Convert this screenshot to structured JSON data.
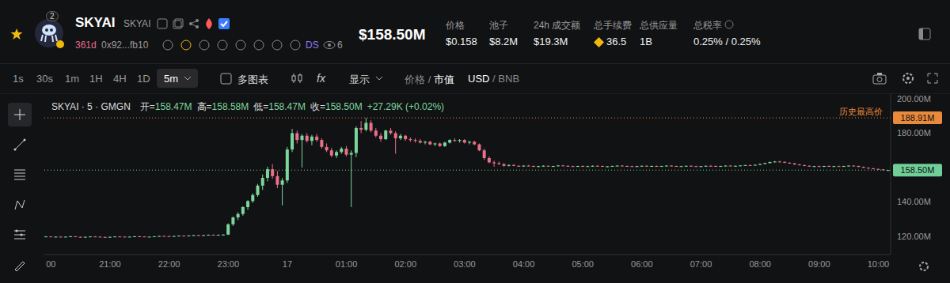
{
  "header": {
    "name": "SKYAI",
    "ticker": "SKYAI",
    "badge": "2",
    "age": "361d",
    "address": "0x92...fb10",
    "ds": "DS",
    "views": "6",
    "market_cap": "$158.50M",
    "stats": [
      {
        "label": "价格",
        "value": "$0.158"
      },
      {
        "label": "池子",
        "value": "$8.2M"
      },
      {
        "label": "24h 成交额",
        "value": "$19.3M"
      },
      {
        "label": "总手续费",
        "value": "36.5"
      },
      {
        "label": "总供应量",
        "value": "1B"
      },
      {
        "label": "总税率",
        "value": "0.25% / 0.25%"
      }
    ]
  },
  "toolbar": {
    "intervals": [
      "1s",
      "30s",
      "1m",
      "1H",
      "4H",
      "1D"
    ],
    "selected": "5m",
    "multi": "多图表",
    "fx": "fx",
    "display": "显示",
    "separator": "/",
    "price_mcap": [
      "价格",
      "市值"
    ],
    "currency": [
      "USD",
      "BNB"
    ]
  },
  "chart_data": {
    "type": "candlestick",
    "title": "SKYAI · 5 · GMGN",
    "info": {
      "items": [
        {
          "label": "开=",
          "value": "158.47M"
        },
        {
          "label": "高=",
          "value": "158.58M"
        },
        {
          "label": "低=",
          "value": "158.47M"
        },
        {
          "label": "收=",
          "value": "158.50M"
        }
      ],
      "change": "+27.29K (+0.02%)"
    },
    "categories": [
      null,
      "00",
      null,
      null,
      null,
      null,
      null,
      null,
      null,
      null,
      null,
      null,
      null,
      "21:00",
      null,
      null,
      null,
      null,
      null,
      null,
      null,
      null,
      null,
      null,
      null,
      "22:00",
      null,
      null,
      null,
      null,
      null,
      null,
      null,
      null,
      null,
      null,
      null,
      "23:00",
      null,
      null,
      null,
      null,
      null,
      null,
      null,
      null,
      null,
      null,
      null,
      "17",
      null,
      null,
      null,
      null,
      null,
      null,
      null,
      null,
      null,
      null,
      null,
      "01:00",
      null,
      null,
      null,
      null,
      null,
      null,
      null,
      null,
      null,
      null,
      null,
      "02:00",
      null,
      null,
      null,
      null,
      null,
      null,
      null,
      null,
      null,
      null,
      null,
      "03:00",
      null,
      null,
      null,
      null,
      null,
      null,
      null,
      null,
      null,
      null,
      null,
      "04:00",
      null,
      null,
      null,
      null,
      null,
      null,
      null,
      null,
      null,
      null,
      null,
      "05:00",
      null,
      null,
      null,
      null,
      null,
      null,
      null,
      null,
      null,
      null,
      null,
      "06:00",
      null,
      null,
      null,
      null,
      null,
      null,
      null,
      null,
      null,
      null,
      null,
      "07:00",
      null,
      null,
      null,
      null,
      null,
      null,
      null,
      null,
      null,
      null,
      null,
      "08:00",
      null,
      null,
      null,
      null,
      null,
      null,
      null,
      null,
      null,
      null,
      null,
      "09:00",
      null,
      null,
      null,
      null,
      null,
      null,
      null,
      null,
      null,
      null,
      null,
      "10:00",
      null,
      null
    ],
    "open": [
      119.8,
      119.9,
      119.6,
      119.8,
      119.7,
      119.8,
      120.0,
      119.7,
      119.6,
      119.7,
      119.9,
      119.8,
      119.6,
      119.5,
      119.7,
      119.9,
      119.8,
      119.7,
      119.8,
      120.0,
      119.9,
      119.7,
      119.8,
      120.0,
      120.2,
      120.1,
      120.0,
      120.2,
      120.4,
      120.3,
      120.5,
      120.7,
      120.6,
      120.7,
      120.9,
      120.8,
      120.9,
      121.0,
      127.0,
      131.0,
      133.0,
      137.0,
      140.5,
      144.0,
      149.5,
      154.0,
      159.0,
      155.0,
      150.0,
      152.5,
      170.5,
      180.0,
      176.0,
      178.5,
      175.5,
      178.0,
      176.0,
      172.0,
      170.0,
      167.0,
      169.0,
      171.0,
      167.5,
      168.5,
      183.0,
      182.0,
      186.0,
      181.5,
      178.5,
      176.5,
      181.5,
      180.0,
      177.0,
      178.5,
      176.5,
      176.0,
      175.5,
      174.5,
      175.0,
      173.5,
      174.0,
      172.5,
      174.5,
      176.0,
      175.5,
      176.0,
      174.5,
      175.0,
      173.5,
      170.0,
      165.5,
      163.0,
      162.5,
      162.0,
      161.0,
      161.5,
      161.0,
      160.8,
      161.1,
      160.9,
      160.6,
      160.8,
      161.0,
      160.7,
      160.9,
      161.2,
      161.0,
      160.8,
      160.6,
      160.9,
      160.7,
      160.8,
      161.0,
      160.9,
      160.6,
      160.7,
      160.9,
      161.1,
      160.9,
      160.8,
      160.6,
      160.8,
      161.0,
      160.8,
      160.9,
      160.7,
      160.9,
      161.1,
      160.9,
      160.7,
      160.8,
      161.0,
      160.8,
      160.6,
      160.8,
      161.0,
      160.9,
      160.7,
      160.9,
      161.1,
      160.9,
      161.0,
      161.2,
      161.4,
      161.3,
      161.6,
      162.1,
      162.6,
      163.2,
      163.5,
      163.3,
      162.8,
      162.4,
      161.8,
      161.4,
      161.0,
      160.7,
      160.8,
      160.6,
      160.9,
      160.7,
      160.8,
      160.6,
      160.9,
      161.1,
      160.9,
      160.4,
      159.9,
      159.5,
      159.2,
      158.9,
      158.47
    ],
    "high": [
      120.1,
      120.0,
      119.9,
      120.0,
      119.9,
      120.2,
      120.1,
      119.9,
      119.8,
      120.0,
      120.1,
      119.9,
      119.8,
      119.8,
      120.0,
      120.1,
      120.0,
      119.9,
      120.1,
      120.2,
      120.0,
      119.9,
      120.1,
      120.3,
      120.4,
      120.3,
      120.2,
      120.5,
      120.6,
      120.5,
      120.8,
      120.9,
      120.8,
      121.0,
      121.1,
      121.0,
      121.2,
      127.5,
      131.5,
      134.0,
      137.5,
      141.0,
      145.0,
      150.5,
      156.0,
      160.5,
      162.0,
      158.0,
      154.0,
      172.0,
      182.5,
      181.5,
      179.5,
      180.0,
      179.0,
      179.5,
      177.0,
      174.0,
      171.5,
      170.0,
      172.0,
      172.5,
      170.0,
      184.0,
      187.0,
      188.91,
      187.5,
      183.0,
      180.0,
      182.0,
      183.0,
      181.0,
      179.5,
      179.0,
      177.5,
      177.0,
      176.5,
      175.5,
      175.5,
      174.5,
      174.5,
      175.0,
      176.5,
      177.0,
      176.5,
      176.5,
      175.5,
      175.5,
      174.0,
      171.0,
      166.5,
      164.0,
      163.5,
      162.5,
      161.8,
      161.9,
      161.4,
      161.3,
      161.5,
      161.2,
      161.0,
      161.3,
      161.2,
      161.0,
      161.4,
      161.5,
      161.3,
      161.1,
      161.0,
      161.2,
      161.0,
      161.2,
      161.3,
      161.1,
      160.9,
      161.1,
      161.3,
      161.4,
      161.2,
      161.0,
      161.0,
      161.1,
      161.3,
      161.1,
      161.2,
      161.0,
      161.3,
      161.4,
      161.1,
      161.0,
      161.2,
      161.3,
      161.0,
      160.9,
      161.2,
      161.3,
      161.2,
      161.0,
      161.3,
      161.4,
      161.2,
      161.4,
      161.6,
      161.7,
      161.8,
      162.3,
      162.8,
      163.4,
      163.8,
      163.9,
      163.6,
      163.1,
      162.7,
      162.1,
      161.7,
      161.3,
      161.0,
      161.1,
      161.0,
      161.2,
      161.0,
      161.1,
      161.0,
      161.3,
      161.4,
      161.1,
      160.6,
      160.1,
      159.8,
      159.4,
      159.1,
      158.58
    ],
    "low": [
      119.6,
      119.5,
      119.4,
      119.6,
      119.5,
      119.7,
      119.6,
      119.5,
      119.4,
      119.6,
      119.7,
      119.5,
      119.4,
      119.3,
      119.6,
      119.7,
      119.6,
      119.5,
      119.7,
      119.8,
      119.6,
      119.5,
      119.7,
      119.9,
      120.0,
      119.9,
      119.8,
      120.1,
      120.2,
      120.1,
      120.4,
      120.5,
      120.4,
      120.6,
      120.7,
      120.6,
      120.8,
      120.8,
      126.0,
      129.5,
      132.0,
      135.5,
      139.5,
      143.0,
      147.0,
      152.0,
      153.5,
      148.0,
      138.0,
      151.0,
      169.0,
      174.0,
      160.0,
      174.5,
      173.0,
      175.0,
      171.0,
      169.0,
      166.0,
      165.5,
      168.0,
      166.5,
      137.0,
      166.0,
      180.0,
      181.0,
      180.5,
      177.5,
      175.0,
      176.0,
      179.0,
      168.0,
      176.0,
      175.5,
      175.0,
      174.5,
      174.0,
      173.5,
      173.0,
      172.5,
      172.0,
      172.0,
      174.0,
      175.0,
      174.5,
      174.0,
      173.5,
      173.0,
      169.5,
      164.5,
      162.5,
      160.5,
      161.5,
      160.5,
      160.6,
      160.8,
      160.5,
      160.4,
      160.7,
      160.3,
      160.2,
      160.5,
      160.6,
      160.3,
      160.7,
      160.8,
      160.6,
      160.4,
      160.3,
      160.6,
      160.4,
      160.5,
      160.7,
      160.5,
      160.2,
      160.5,
      160.7,
      160.8,
      160.6,
      160.4,
      160.3,
      160.5,
      160.7,
      160.5,
      160.6,
      160.4,
      160.7,
      160.8,
      160.5,
      160.4,
      160.6,
      160.7,
      160.4,
      160.2,
      160.6,
      160.7,
      160.6,
      160.4,
      160.7,
      160.8,
      160.6,
      160.8,
      161.0,
      161.1,
      161.1,
      161.4,
      161.9,
      162.4,
      162.9,
      163.0,
      162.6,
      162.2,
      161.6,
      161.2,
      160.8,
      160.5,
      160.3,
      160.4,
      160.3,
      160.6,
      160.4,
      160.5,
      160.3,
      160.7,
      160.8,
      160.2,
      159.7,
      159.3,
      159.0,
      158.7,
      158.4,
      158.47
    ],
    "close": [
      119.9,
      119.6,
      119.8,
      119.7,
      119.8,
      120.0,
      119.7,
      119.6,
      119.7,
      119.9,
      119.8,
      119.6,
      119.5,
      119.7,
      119.9,
      119.8,
      119.7,
      119.8,
      120.0,
      119.9,
      119.7,
      119.8,
      120.0,
      120.2,
      120.1,
      120.0,
      120.2,
      120.4,
      120.3,
      120.5,
      120.7,
      120.6,
      120.7,
      120.9,
      120.8,
      120.9,
      121.0,
      127.0,
      131.0,
      133.0,
      137.0,
      140.5,
      144.0,
      149.5,
      154.0,
      159.0,
      155.0,
      150.0,
      152.5,
      170.5,
      180.0,
      176.0,
      178.5,
      175.5,
      178.0,
      176.0,
      172.0,
      170.0,
      167.0,
      169.0,
      171.0,
      167.5,
      168.5,
      183.0,
      182.0,
      186.0,
      181.5,
      178.5,
      176.5,
      181.5,
      180.0,
      177.0,
      178.5,
      176.5,
      176.0,
      175.5,
      174.5,
      175.0,
      173.5,
      174.0,
      172.5,
      174.5,
      176.0,
      175.5,
      176.0,
      174.5,
      175.0,
      173.5,
      170.0,
      165.5,
      163.0,
      162.5,
      162.0,
      161.0,
      161.5,
      161.0,
      160.8,
      161.1,
      160.9,
      160.6,
      160.8,
      161.0,
      160.7,
      160.9,
      161.2,
      161.0,
      160.8,
      160.6,
      160.9,
      160.7,
      160.8,
      161.0,
      160.9,
      160.6,
      160.7,
      160.9,
      161.1,
      160.9,
      160.8,
      160.6,
      160.8,
      161.0,
      160.8,
      160.9,
      160.7,
      160.9,
      161.1,
      160.9,
      160.7,
      160.8,
      161.0,
      160.8,
      160.6,
      160.8,
      161.0,
      160.9,
      160.7,
      160.9,
      161.1,
      160.9,
      161.0,
      161.2,
      161.4,
      161.3,
      161.6,
      162.1,
      162.6,
      163.2,
      163.5,
      163.3,
      162.8,
      162.4,
      161.8,
      161.4,
      161.0,
      160.7,
      160.8,
      160.6,
      160.9,
      160.7,
      160.8,
      160.6,
      160.9,
      161.1,
      160.9,
      160.4,
      159.9,
      159.5,
      159.2,
      158.9,
      158.47,
      158.5
    ],
    "ylim": [
      109.4,
      203.2
    ],
    "yticks": [
      {
        "value": 120,
        "label": "120.00M"
      },
      {
        "value": 140,
        "label": "140.00M"
      },
      {
        "value": 180,
        "label": "180.00M"
      },
      {
        "value": 200,
        "label": "200.00M"
      }
    ],
    "grid": false,
    "annotations": [
      {
        "value": 188.91,
        "label": "188.91M",
        "text": "历史最高价",
        "color": "#e8893c"
      },
      {
        "value": 158.5,
        "label": "158.50M",
        "color": "#6fcf97"
      }
    ]
  }
}
